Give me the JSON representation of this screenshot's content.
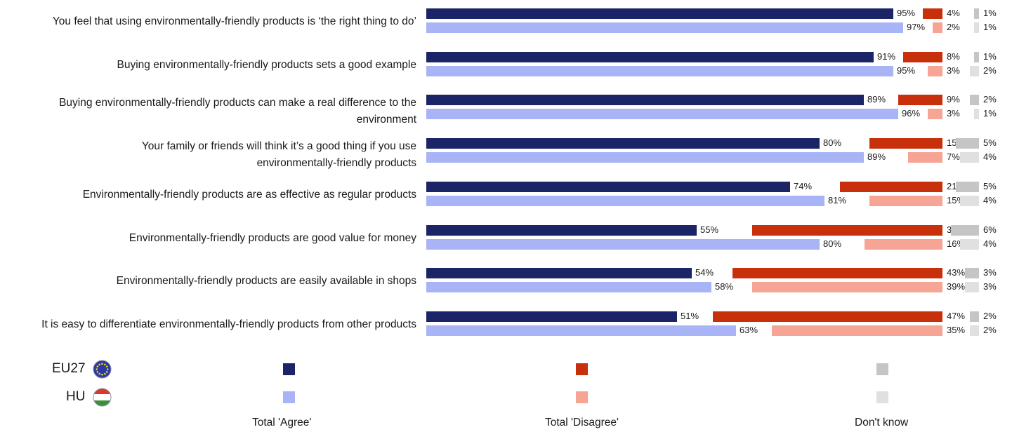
{
  "chart_data": {
    "type": "bar",
    "orientation": "horizontal",
    "stacked": false,
    "value_unit": "%",
    "categories": [
      "You feel that using environmentally-friendly products is ‘the right thing to do’",
      "Buying environmentally-friendly products sets a good example",
      "Buying environmentally-friendly products can make a real difference to the environment",
      "Your family or friends will think it’s a good thing if you use environmentally-friendly products",
      "Environmentally-friendly products are as effective as regular products",
      "Environmentally-friendly products are good value for money",
      "Environmentally-friendly products are easily available in shops",
      "It is easy to differentiate environmentally-friendly products from other products"
    ],
    "label_lines": [
      [
        "You feel that using environmentally-friendly products is ‘the right thing to do’"
      ],
      [
        "Buying environmentally-friendly products sets a good example"
      ],
      [
        "Buying environmentally-friendly products can make a real difference to the",
        "environment"
      ],
      [
        "Your family or friends will think it’s a good thing if you use",
        "environmentally-friendly products"
      ],
      [
        "Environmentally-friendly products are as effective as regular products"
      ],
      [
        "Environmentally-friendly products are good value for money"
      ],
      [
        "Environmentally-friendly products are easily available in shops"
      ],
      [
        "It is easy to differentiate environmentally-friendly products from other products"
      ]
    ],
    "response_groups": [
      "Total 'Agree'",
      "Total 'Disagree'",
      "Don't know"
    ],
    "series": [
      {
        "name": "EU27",
        "values": {
          "agree": [
            95,
            91,
            89,
            80,
            74,
            55,
            54,
            51
          ],
          "disagree": [
            4,
            8,
            9,
            15,
            21,
            39,
            43,
            47
          ],
          "dontknow": [
            1,
            1,
            2,
            5,
            5,
            6,
            3,
            2
          ]
        }
      },
      {
        "name": "HU",
        "values": {
          "agree": [
            97,
            95,
            96,
            89,
            81,
            80,
            58,
            63
          ],
          "disagree": [
            2,
            3,
            3,
            7,
            15,
            16,
            39,
            35
          ],
          "dontknow": [
            1,
            2,
            1,
            4,
            4,
            4,
            3,
            2
          ]
        }
      }
    ],
    "colors": {
      "EU27": {
        "agree": "#1b2466",
        "disagree": "#c8300c",
        "dontknow": "#c5c5c5"
      },
      "HU": {
        "agree": "#a9b4f7",
        "disagree": "#f6a595",
        "dontknow": "#e0e0e0"
      }
    },
    "legend": {
      "placement": "bottom",
      "entries": [
        "EU27",
        "HU"
      ],
      "icons": {
        "EU27": "eu-flag-icon",
        "HU": "hungary-flag-icon"
      }
    },
    "grid": false
  }
}
